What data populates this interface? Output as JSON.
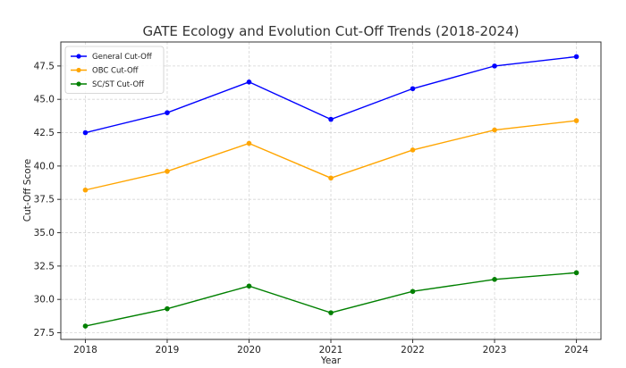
{
  "chart_data": {
    "type": "line",
    "title": "GATE Ecology and Evolution Cut-Off Trends (2018-2024)",
    "xlabel": "Year",
    "ylabel": "Cut-Off Score",
    "x": [
      2018,
      2019,
      2020,
      2021,
      2022,
      2023,
      2024
    ],
    "x_tick_labels": [
      "2018",
      "2019",
      "2020",
      "2021",
      "2022",
      "2023",
      "2024"
    ],
    "y_ticks": [
      27.5,
      30.0,
      32.5,
      35.0,
      37.5,
      40.0,
      42.5,
      45.0,
      47.5
    ],
    "y_tick_labels": [
      "27.5",
      "30.0",
      "32.5",
      "35.0",
      "37.5",
      "40.0",
      "42.5",
      "45.0",
      "47.5"
    ],
    "ylim": [
      27.0,
      49.3
    ],
    "xlim": [
      2017.7,
      2024.3
    ],
    "grid": true,
    "legend_position": "top-left",
    "series": [
      {
        "name": "General Cut-Off",
        "color": "#0000ff",
        "marker": "circle",
        "values": [
          42.5,
          44.0,
          46.3,
          43.5,
          45.8,
          47.5,
          48.2
        ]
      },
      {
        "name": "OBC Cut-Off",
        "color": "#ffa500",
        "marker": "circle",
        "values": [
          38.2,
          39.6,
          41.7,
          39.1,
          41.2,
          42.7,
          43.4
        ]
      },
      {
        "name": "SC/ST Cut-Off",
        "color": "#008000",
        "marker": "circle",
        "values": [
          28.0,
          29.3,
          31.0,
          29.0,
          30.6,
          31.5,
          32.0
        ]
      }
    ]
  }
}
